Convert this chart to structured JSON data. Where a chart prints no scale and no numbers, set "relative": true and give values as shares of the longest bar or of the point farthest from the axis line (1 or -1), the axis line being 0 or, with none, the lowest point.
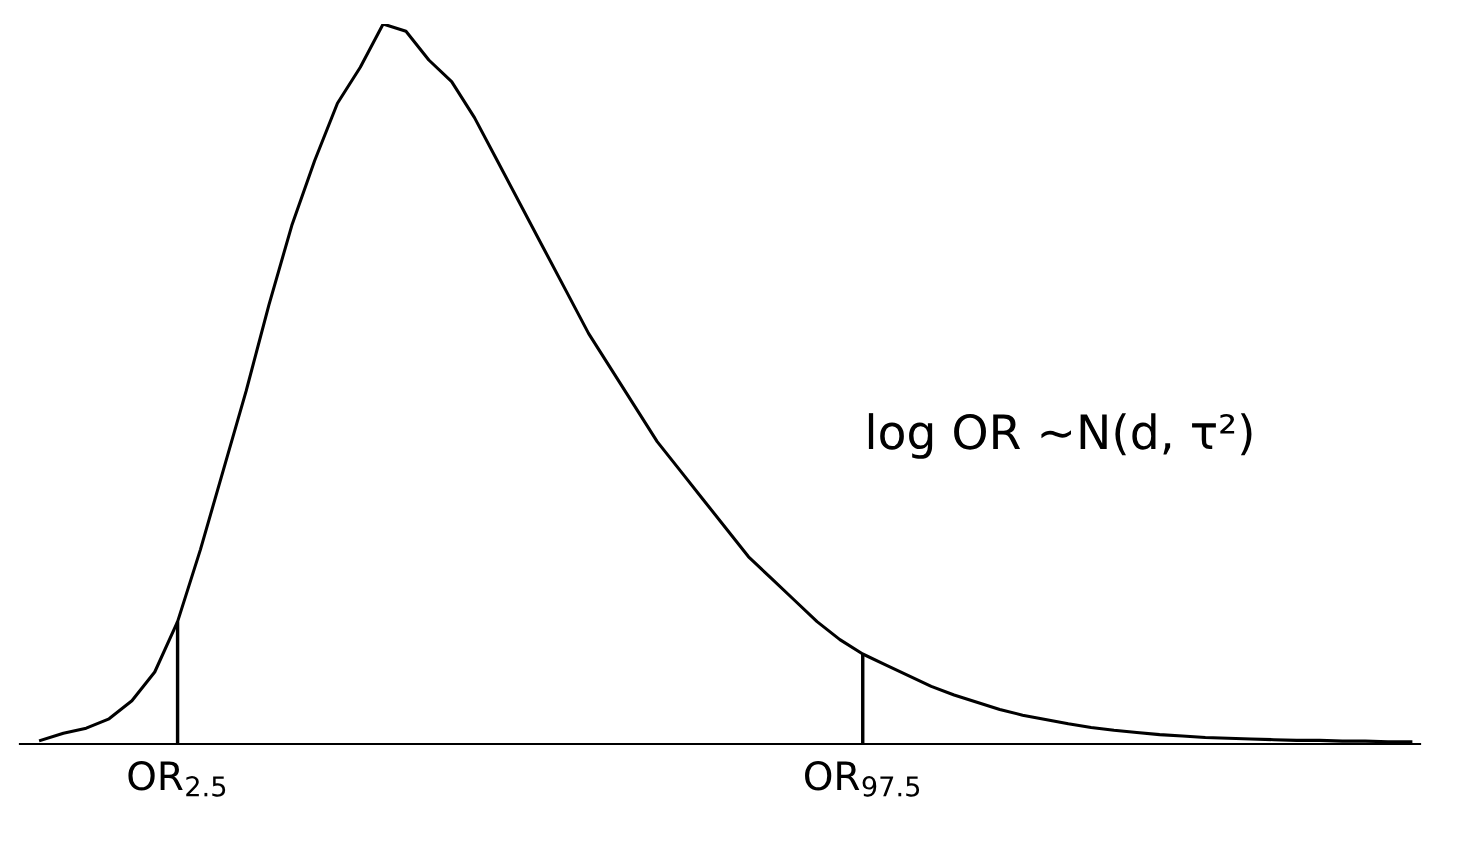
{
  "chart_data": {
    "type": "line",
    "relative": true,
    "categories": [
      null,
      null,
      null,
      null,
      null,
      null,
      "OR$_{2.5}$",
      null,
      null,
      null,
      null,
      null,
      null,
      null,
      null,
      null,
      null,
      null,
      null,
      null,
      null,
      null,
      null,
      null,
      null,
      null,
      null,
      null,
      null,
      null,
      null,
      null,
      null,
      null,
      null,
      null,
      "OR$_{97.5}$",
      null,
      null,
      null,
      null,
      null,
      null,
      null,
      null,
      null,
      null,
      null,
      null,
      null,
      null,
      null,
      null,
      null,
      null,
      null,
      null,
      null,
      null,
      null,
      null
    ],
    "series": [
      {
        "color": "#000000",
        "values": [
          0.005,
          0.015,
          0.022,
          0.035,
          0.06,
          0.1,
          0.17,
          0.27,
          0.38,
          0.49,
          0.61,
          0.72,
          0.81,
          0.89,
          0.94,
          1.0,
          0.99,
          0.95,
          0.92,
          0.87,
          0.81,
          0.75,
          0.69,
          0.63,
          0.57,
          0.52,
          0.47,
          0.42,
          0.38,
          0.34,
          0.3,
          0.26,
          0.23,
          0.2,
          0.17,
          0.145,
          0.125,
          0.11,
          0.095,
          0.08,
          0.068,
          0.058,
          0.048,
          0.04,
          0.034,
          0.028,
          0.023,
          0.019,
          0.016,
          0.013,
          0.011,
          0.009,
          0.008,
          0.007,
          0.006,
          0.005,
          0.005,
          0.004,
          0.004,
          0.003,
          0.003
        ]
      },
      {
        "type": "bar",
        "color": "#000000",
        "values": [
          null,
          null,
          null,
          null,
          null,
          null,
          0.17,
          null,
          null,
          null,
          null,
          null,
          null,
          null,
          null,
          null,
          null,
          null,
          null,
          null,
          null,
          null,
          null,
          null,
          null,
          null,
          null,
          null,
          null,
          null,
          null,
          null,
          null,
          null,
          null,
          null,
          0.125,
          null,
          null,
          null,
          null,
          null,
          null,
          null,
          null,
          null,
          null,
          null,
          null,
          null,
          null,
          null,
          null,
          null,
          null,
          null,
          null,
          null,
          null,
          null,
          null
        ]
      }
    ],
    "annotations": [
      "log OR ~N(d, τ²)"
    ]
  }
}
